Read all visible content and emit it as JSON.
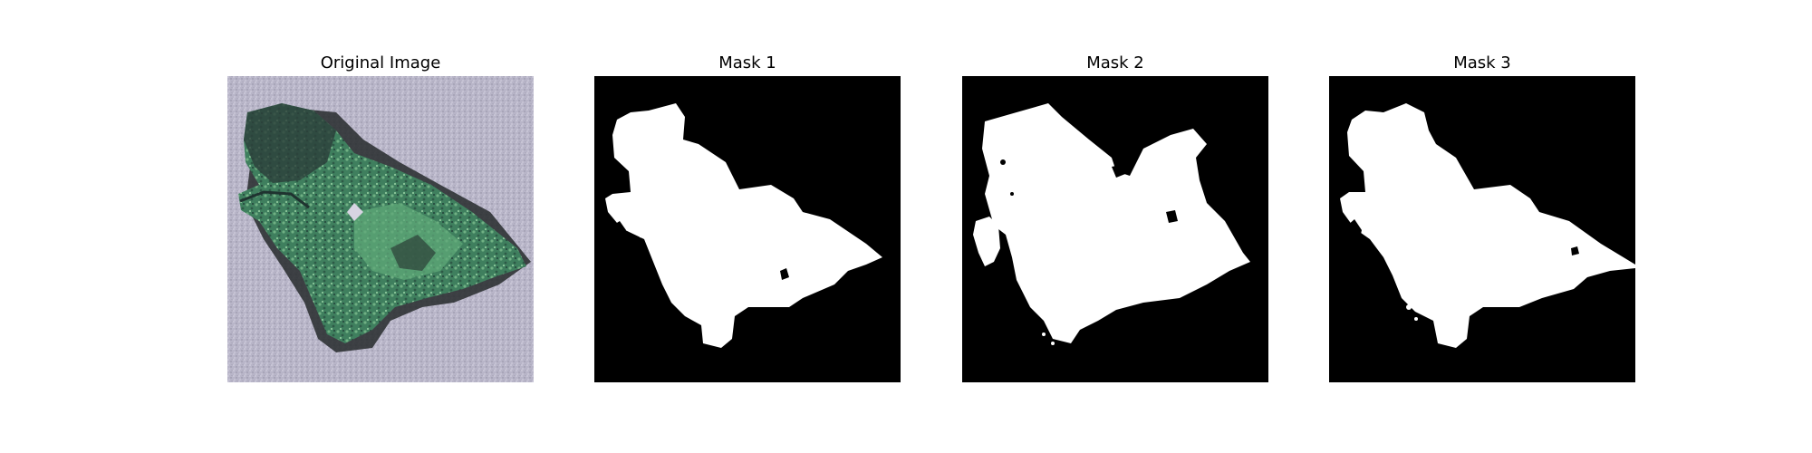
{
  "panels": [
    {
      "title": "Original Image",
      "kind": "photo"
    },
    {
      "title": "Mask 1",
      "kind": "mask"
    },
    {
      "title": "Mask 2",
      "kind": "mask"
    },
    {
      "title": "Mask 3",
      "kind": "mask"
    }
  ],
  "colors": {
    "background": "#ffffff",
    "mask_foreground": "#ffffff",
    "mask_background": "#000000",
    "photo_ground": "#b9b6c9",
    "leaf_dark": "#2b3b36",
    "leaf_green": "#4b8f69",
    "leaf_light": "#7fbf8e"
  }
}
